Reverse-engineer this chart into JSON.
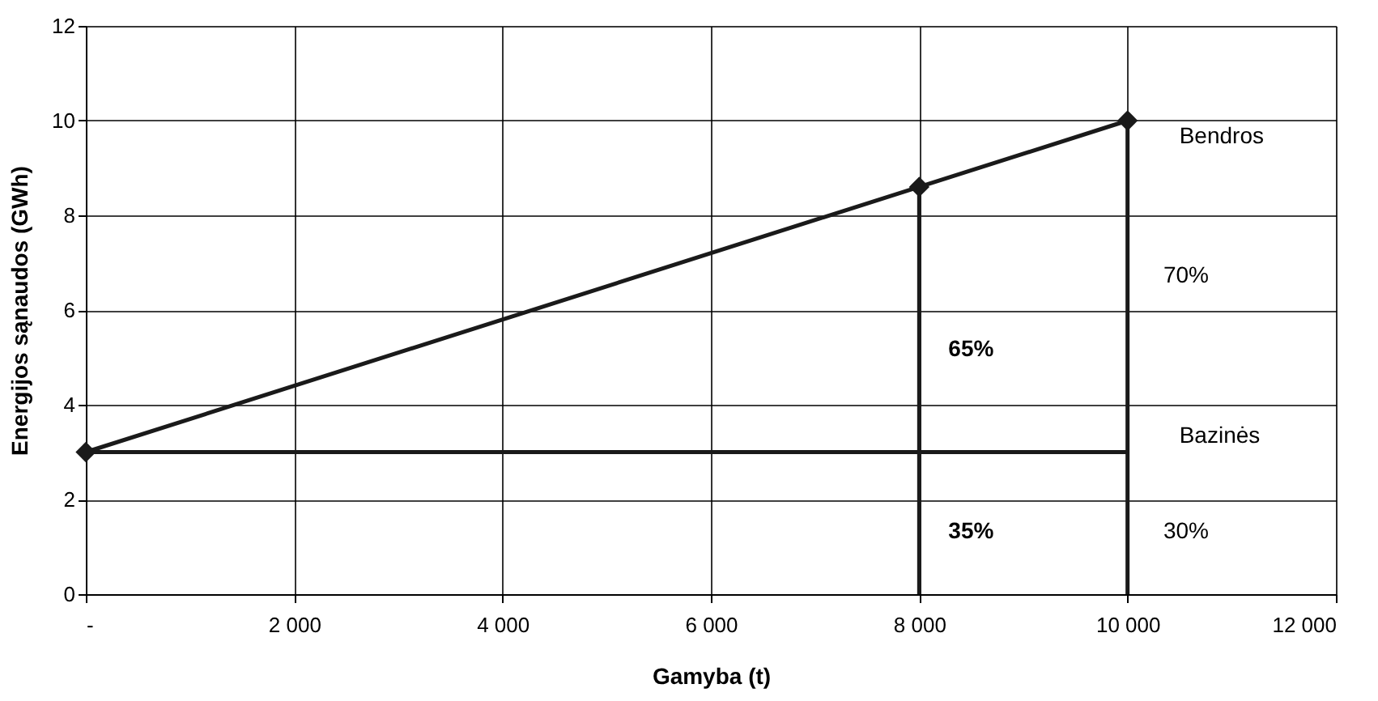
{
  "chart_data": {
    "type": "line",
    "xlabel": "Gamyba (t)",
    "ylabel": "Energijos sąnaudos (GWh)",
    "xlim": [
      0,
      12000
    ],
    "ylim": [
      0,
      12
    ],
    "xticks": [
      {
        "value": 0,
        "label": "-"
      },
      {
        "value": 2000,
        "label": "2 000"
      },
      {
        "value": 4000,
        "label": "4 000"
      },
      {
        "value": 6000,
        "label": "6 000"
      },
      {
        "value": 8000,
        "label": "8 000"
      },
      {
        "value": 10000,
        "label": "10 000"
      },
      {
        "value": 12000,
        "label": "12 000"
      }
    ],
    "yticks": [
      0,
      2,
      4,
      6,
      8,
      10,
      12
    ],
    "grid": true,
    "series": [
      {
        "name": "Bendros",
        "color": "#1a1a1a",
        "x": [
          0,
          8000,
          10000
        ],
        "values": [
          3,
          8.6,
          10
        ],
        "marker": "diamond",
        "line_style": "solid"
      },
      {
        "name": "Bazinės",
        "color": "#1a1a1a",
        "x": [
          0,
          10000
        ],
        "values": [
          3,
          3
        ],
        "marker": "none",
        "line_style": "solid"
      },
      {
        "color": "#1a1a1a",
        "x": [
          8000,
          8000
        ],
        "values": [
          0,
          8.6
        ],
        "marker": "none",
        "line_style": "solid"
      },
      {
        "color": "#1a1a1a",
        "x": [
          10000,
          10000
        ],
        "values": [
          0,
          10
        ],
        "marker": "none",
        "line_style": "solid"
      }
    ],
    "annotations": [
      "65%",
      "35%",
      "70%",
      "30%"
    ]
  }
}
